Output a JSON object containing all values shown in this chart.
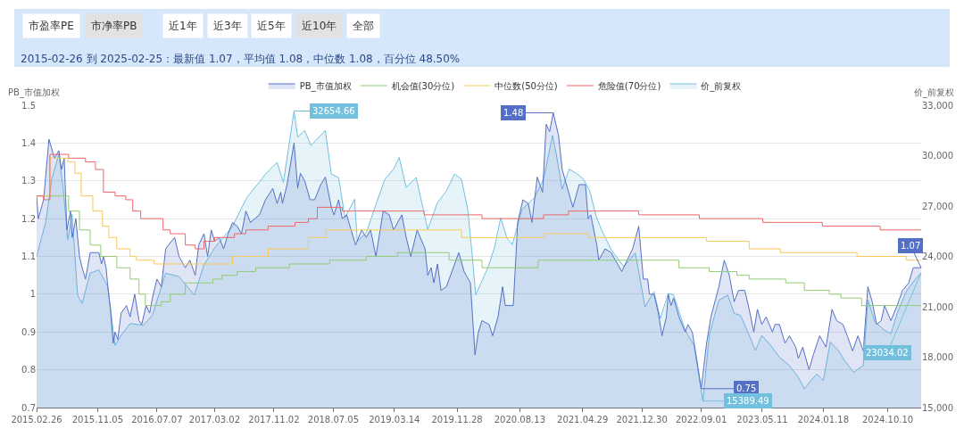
{
  "chart_data": {
    "type": "step",
    "subtitle": "2015-02-26 到 2025-02-25：最新值 1.07，平均值 1.08，中位数 1.08，百分位 48.50%",
    "annotations": [
      "市盈率PE",
      "市净率PB",
      "近1年",
      "近3年",
      "近5年",
      "近10年",
      "全部"
    ],
    "ylabel": "PB_市值加权",
    "y2label": "价_前复权",
    "xlim": [
      "2015-02-26",
      "2025-02-25"
    ],
    "xticks": [
      {
        "value": "2015-02-26",
        "label": "2015.02.26"
      },
      {
        "value": "2015-11-05",
        "label": "2015.11.05"
      },
      {
        "value": "2016-07-07",
        "label": "2016.07.07"
      },
      {
        "value": "2017-03-02",
        "label": "2017.03.02"
      },
      {
        "value": "2017-11-02",
        "label": "2017.11.02"
      },
      {
        "value": "2018-07-05",
        "label": "2018.07.05"
      },
      {
        "value": "2019-03-14",
        "label": "2019.03.14"
      },
      {
        "value": "2019-11-28",
        "label": "2019.11.28"
      },
      {
        "value": "2020-08-13",
        "label": "2020.08.13"
      },
      {
        "value": "2021-04-29",
        "label": "2021.04.29"
      },
      {
        "value": "2021-12-30",
        "label": "2021.12.30"
      },
      {
        "value": "2022-09-01",
        "label": "2022.09.01"
      },
      {
        "value": "2023-05-11",
        "label": "2023.05.11"
      },
      {
        "value": "2024-01-18",
        "label": "2024.01.18"
      },
      {
        "value": "2024-10-10",
        "label": "2024.10.10"
      }
    ],
    "ylim": [
      0.7,
      1.5
    ],
    "yticks": [
      0.7,
      0.8,
      0.9,
      1,
      1.1,
      1.2,
      1.3,
      1.4,
      1.5
    ],
    "y2lim": [
      15000,
      33000
    ],
    "y2ticks": [
      {
        "value": 15000,
        "label": "15,000"
      },
      {
        "value": 18000,
        "label": "18,000"
      },
      {
        "value": 21000,
        "label": "21,000"
      },
      {
        "value": 24000,
        "label": "24,000"
      },
      {
        "value": 27000,
        "label": "27,000"
      },
      {
        "value": 30000,
        "label": "30,000"
      },
      {
        "value": 33000,
        "label": "33,000"
      }
    ],
    "grid": "y",
    "legend": "top",
    "marker": "none",
    "series": [
      {
        "name": "PB_市值加权",
        "type": "area",
        "color": "#5470c6",
        "x": [
          "2015-02-26",
          "2015-03-05",
          "2015-03-27",
          "2015-04-18",
          "2015-05-11",
          "2015-05-29",
          "2015-06-09",
          "2015-06-20",
          "2015-07-01",
          "2015-07-16",
          "2015-07-23",
          "2015-08-07",
          "2015-08-22",
          "2015-09-02",
          "2015-09-16",
          "2015-10-05",
          "2015-11-10",
          "2015-11-21",
          "2015-11-29",
          "2015-12-10",
          "2015-12-17",
          "2015-12-28",
          "2016-01-08",
          "2016-01-16",
          "2016-01-27",
          "2016-02-10",
          "2016-03-03",
          "2016-03-18",
          "2016-04-06",
          "2016-04-24",
          "2016-05-05",
          "2016-05-23",
          "2016-06-07",
          "2016-06-18",
          "2016-07-07",
          "2016-07-25",
          "2016-08-12",
          "2016-08-23",
          "2016-09-18",
          "2016-10-06",
          "2016-11-01",
          "2016-11-20",
          "2016-12-12",
          "2016-12-26",
          "2017-01-17",
          "2017-02-01",
          "2017-02-16",
          "2017-03-02",
          "2017-03-21",
          "2017-04-08",
          "2017-04-27",
          "2017-05-15",
          "2017-06-03",
          "2017-06-21",
          "2017-07-09",
          "2017-07-28",
          "2017-08-15",
          "2017-09-03",
          "2017-09-28",
          "2017-10-28",
          "2017-11-15",
          "2017-11-30",
          "2017-12-07",
          "2017-12-26",
          "2018-01-24",
          "2018-02-08",
          "2018-02-19",
          "2018-03-09",
          "2018-03-31",
          "2018-04-19",
          "2018-05-14",
          "2018-06-02",
          "2018-06-27",
          "2018-07-08",
          "2018-07-27",
          "2018-08-11",
          "2018-08-29",
          "2018-10-05",
          "2018-10-30",
          "2018-11-18",
          "2018-12-06",
          "2018-12-28",
          "2019-01-27",
          "2019-02-21",
          "2019-03-11",
          "2019-04-14",
          "2019-05-02",
          "2019-05-21",
          "2019-06-16",
          "2019-07-19",
          "2019-07-30",
          "2019-08-13",
          "2019-08-24",
          "2019-09-08",
          "2019-09-23",
          "2019-10-15",
          "2019-12-05",
          "2019-12-27",
          "2020-01-22",
          "2020-02-10",
          "2020-02-24",
          "2020-03-10",
          "2020-04-08",
          "2020-04-23",
          "2020-05-15",
          "2020-06-03",
          "2020-06-14",
          "2020-07-17",
          "2020-07-28",
          "2020-08-04",
          "2020-08-26",
          "2020-09-17",
          "2020-10-02",
          "2020-10-24",
          "2020-11-15",
          "2020-11-30",
          "2020-12-14",
          "2020-12-29",
          "2021-01-20",
          "2021-02-04",
          "2021-03-20",
          "2021-04-15",
          "2021-05-11",
          "2021-05-22",
          "2021-06-02",
          "2021-06-27",
          "2021-07-05",
          "2021-07-31",
          "2021-08-25",
          "2021-10-08",
          "2021-11-22",
          "2021-12-17",
          "2022-01-05",
          "2022-01-23",
          "2022-01-30",
          "2022-02-18",
          "2022-03-08",
          "2022-03-23",
          "2022-04-10",
          "2022-04-18",
          "2022-04-29",
          "2022-05-10",
          "2022-06-01",
          "2022-06-27",
          "2022-07-08",
          "2022-07-26",
          "2022-08-13",
          "2022-09-01",
          "2022-09-23",
          "2022-10-11",
          "2022-11-13",
          "2022-12-05",
          "2022-12-26",
          "2023-01-15",
          "2023-02-02",
          "2023-02-28",
          "2023-03-18",
          "2023-04-06",
          "2023-04-21",
          "2023-05-09",
          "2023-05-27",
          "2023-06-22",
          "2023-07-03",
          "2023-07-21",
          "2023-08-13",
          "2023-08-31",
          "2023-09-26",
          "2023-10-07",
          "2023-10-25",
          "2023-11-20",
          "2023-12-08",
          "2024-01-03",
          "2024-01-29",
          "2024-02-23",
          "2024-03-13",
          "2024-04-08",
          "2024-04-26",
          "2024-05-18",
          "2024-06-09",
          "2024-07-01",
          "2024-07-20",
          "2024-08-07",
          "2024-08-25",
          "2024-09-13",
          "2024-09-27",
          "2024-10-23",
          "2024-11-18",
          "2024-12-10",
          "2025-01-05",
          "2025-01-23",
          "2025-02-25"
        ],
        "values": [
          1.26,
          1.2,
          1.25,
          1.41,
          1.36,
          1.38,
          1.33,
          1.36,
          1.17,
          1.22,
          1.15,
          1.2,
          1.1,
          1.07,
          1.04,
          1.11,
          1.11,
          1.08,
          1.1,
          1.07,
          1.02,
          0.96,
          0.87,
          0.9,
          0.88,
          0.95,
          0.97,
          0.94,
          1.0,
          0.93,
          0.92,
          0.97,
          0.95,
          0.99,
          1.04,
          1.02,
          1.12,
          1.13,
          1.15,
          1.1,
          1.07,
          1.09,
          1.05,
          1.13,
          1.16,
          1.1,
          1.17,
          1.14,
          1.15,
          1.12,
          1.16,
          1.19,
          1.18,
          1.16,
          1.22,
          1.19,
          1.2,
          1.21,
          1.25,
          1.28,
          1.24,
          1.27,
          1.24,
          1.29,
          1.4,
          1.28,
          1.32,
          1.3,
          1.25,
          1.25,
          1.29,
          1.31,
          1.23,
          1.21,
          1.25,
          1.2,
          1.21,
          1.13,
          1.17,
          1.15,
          1.17,
          1.1,
          1.22,
          1.21,
          1.17,
          1.21,
          1.15,
          1.1,
          1.17,
          1.12,
          1.05,
          1.07,
          1.03,
          1.08,
          1.01,
          1.02,
          1.11,
          1.06,
          1.03,
          0.84,
          0.9,
          0.93,
          0.92,
          0.89,
          0.94,
          1.02,
          0.97,
          0.97,
          1.1,
          1.19,
          1.25,
          1.24,
          1.19,
          1.31,
          1.27,
          1.45,
          1.43,
          1.48,
          1.42,
          1.33,
          1.23,
          1.29,
          1.29,
          1.2,
          1.21,
          1.13,
          1.09,
          1.12,
          1.11,
          1.06,
          1.12,
          1.18,
          1.04,
          1.04,
          1.0,
          1.0,
          0.95,
          0.89,
          0.94,
          1.0,
          0.97,
          0.99,
          0.94,
          0.9,
          0.92,
          0.9,
          0.83,
          0.75,
          0.87,
          0.94,
          1.02,
          1.09,
          1.05,
          0.98,
          1.01,
          1.01,
          0.96,
          0.9,
          0.96,
          0.92,
          0.94,
          0.9,
          0.92,
          0.92,
          0.87,
          0.89,
          0.86,
          0.83,
          0.86,
          0.8,
          0.84,
          0.89,
          0.86,
          0.96,
          0.93,
          0.92,
          0.89,
          0.85,
          0.89,
          0.85,
          1.02,
          0.98,
          0.92,
          0.93,
          0.97,
          0.93,
          0.97,
          1.01,
          1.03,
          1.07,
          1.07
        ],
        "value_labels": [
          null,
          null,
          null,
          null,
          null,
          null,
          null,
          null,
          null,
          null,
          null,
          null,
          null,
          null,
          null,
          null,
          null,
          null,
          null,
          null,
          null,
          null,
          null,
          null,
          null,
          null,
          null,
          null,
          null,
          null,
          null,
          null,
          null,
          null,
          null,
          null,
          null,
          null,
          null,
          null,
          null,
          null,
          null,
          null,
          null,
          null,
          null,
          null,
          null,
          null,
          null,
          null,
          null,
          null,
          null,
          null,
          null,
          null,
          null,
          null,
          null,
          null,
          null,
          null,
          null,
          null,
          null,
          null,
          null,
          null,
          null,
          null,
          null,
          null,
          null,
          null,
          null,
          null,
          null,
          null,
          null,
          null,
          null,
          null,
          null,
          null,
          null,
          null,
          null,
          null,
          null,
          null,
          null,
          null,
          null,
          null,
          null,
          null,
          null,
          null,
          null,
          null,
          null,
          null,
          null,
          null,
          null,
          null,
          null,
          null,
          null,
          null,
          null,
          null,
          null,
          null,
          null,
          "1.48",
          null,
          null,
          null,
          null,
          null,
          null,
          null,
          null,
          null,
          null,
          null,
          null,
          null,
          null,
          null,
          null,
          null,
          null,
          null,
          null,
          null,
          null,
          null,
          null,
          null,
          null,
          null,
          null,
          null,
          "0.75",
          null,
          null,
          null,
          null,
          null,
          null,
          null,
          null,
          null,
          null,
          null,
          null,
          null,
          null,
          null,
          null,
          null,
          null,
          null,
          null,
          null,
          null,
          null,
          null,
          null,
          null,
          null,
          null,
          null,
          null,
          null,
          null,
          null,
          null,
          null,
          null,
          null,
          null,
          null,
          null,
          null,
          null,
          "1.07"
        ]
      },
      {
        "name": "机会值(30分位)",
        "color": "#91cc75",
        "x": [
          "2015-02-26",
          "2015-07-08",
          "2015-08-22",
          "2015-10-05",
          "2015-11-18",
          "2016-01-23",
          "2016-03-18",
          "2016-04-24",
          "2016-05-20",
          "2016-07-25",
          "2016-08-31",
          "2016-11-01",
          "2017-02-23",
          "2017-04-01",
          "2017-06-03",
          "2017-08-19",
          "2018-01-05",
          "2018-06-20",
          "2018-11-18",
          "2019-03-27",
          "2019-10-26",
          "2020-03-10",
          "2020-10-28",
          "2022-06-01",
          "2022-10-04",
          "2023-01-26",
          "2023-03-18",
          "2023-08-16",
          "2023-11-01",
          "2024-02-12",
          "2024-03-31",
          "2024-06-24",
          "2025-02-25"
        ],
        "values": [
          1.26,
          1.22,
          1.17,
          1.13,
          1.1,
          1.07,
          1.04,
          1.0,
          0.97,
          0.98,
          1.0,
          1.03,
          1.04,
          1.05,
          1.06,
          1.07,
          1.08,
          1.09,
          1.1,
          1.11,
          1.09,
          1.07,
          1.09,
          1.07,
          1.06,
          1.05,
          1.04,
          1.03,
          1.01,
          1.0,
          0.99,
          0.97,
          0.97
        ]
      },
      {
        "name": "中位数(50分位)",
        "color": "#fac858",
        "x": [
          "2015-02-26",
          "2015-04-22",
          "2015-07-05",
          "2015-08-03",
          "2015-08-29",
          "2015-10-16",
          "2015-11-25",
          "2015-12-21",
          "2016-01-23",
          "2016-03-18",
          "2016-04-13",
          "2016-06-25",
          "2017-05-15",
          "2017-10-09",
          "2018-03-24",
          "2018-06-05",
          "2019-12-16",
          "2020-11-22",
          "2021-05-25",
          "2022-09-23",
          "2023-03-18",
          "2023-07-25",
          "2024-06-05",
          "2024-12-25",
          "2025-02-25"
        ],
        "values": [
          1.26,
          1.36,
          1.35,
          1.32,
          1.26,
          1.22,
          1.18,
          1.15,
          1.12,
          1.1,
          1.09,
          1.08,
          1.1,
          1.12,
          1.15,
          1.17,
          1.15,
          1.16,
          1.15,
          1.14,
          1.12,
          1.11,
          1.1,
          1.09,
          1.09
        ]
      },
      {
        "name": "危险值(70分位)",
        "color": "#ee6666",
        "x": [
          "2015-02-26",
          "2015-03-27",
          "2015-04-22",
          "2015-07-08",
          "2015-09-16",
          "2015-10-27",
          "2015-11-29",
          "2016-01-16",
          "2016-02-29",
          "2016-03-29",
          "2016-05-01",
          "2016-08-01",
          "2016-08-31",
          "2016-11-01",
          "2016-12-12",
          "2017-01-17",
          "2017-03-02",
          "2017-05-23",
          "2017-07-09",
          "2017-10-09",
          "2018-01-28",
          "2018-03-24",
          "2018-04-30",
          "2018-08-11",
          "2019-07-15",
          "2020-03-10",
          "2020-11-19",
          "2021-03-02",
          "2021-12-17",
          "2022-08-24",
          "2023-05-13",
          "2024-01-14",
          "2024-09-09",
          "2025-02-25"
        ],
        "values": [
          1.26,
          1.25,
          1.37,
          1.36,
          1.35,
          1.33,
          1.27,
          1.26,
          1.25,
          1.22,
          1.2,
          1.17,
          1.16,
          1.13,
          1.12,
          1.14,
          1.15,
          1.16,
          1.17,
          1.18,
          1.19,
          1.2,
          1.23,
          1.22,
          1.21,
          1.2,
          1.21,
          1.22,
          1.21,
          1.2,
          1.19,
          1.18,
          1.17,
          1.17
        ]
      },
      {
        "name": "价_前复权",
        "type": "area",
        "axis": "y2",
        "color": "#73c0de",
        "x": [
          "2015-02-26",
          "2015-04-04",
          "2015-04-30",
          "2015-05-29",
          "2015-06-16",
          "2015-07-05",
          "2015-07-23",
          "2015-08-14",
          "2015-09-02",
          "2015-10-05",
          "2015-11-10",
          "2015-12-17",
          "2016-01-16",
          "2016-02-10",
          "2016-03-18",
          "2016-05-12",
          "2016-06-18",
          "2016-08-12",
          "2016-10-06",
          "2016-12-08",
          "2017-01-17",
          "2017-03-02",
          "2017-05-15",
          "2017-07-13",
          "2017-09-28",
          "2017-11-15",
          "2017-12-11",
          "2018-01-24",
          "2018-02-08",
          "2018-03-09",
          "2018-04-04",
          "2018-06-02",
          "2018-06-27",
          "2018-07-27",
          "2018-08-22",
          "2018-10-01",
          "2018-10-12",
          "2018-11-18",
          "2018-12-21",
          "2019-02-03",
          "2019-03-11",
          "2019-04-03",
          "2019-05-02",
          "2019-06-12",
          "2019-07-30",
          "2019-09-08",
          "2019-10-15",
          "2019-11-17",
          "2019-12-16",
          "2020-01-11",
          "2020-01-30",
          "2020-02-13",
          "2020-04-05",
          "2020-04-30",
          "2020-05-26",
          "2020-06-21",
          "2020-07-13",
          "2020-08-22",
          "2020-10-13",
          "2020-11-19",
          "2020-12-26",
          "2021-01-09",
          "2021-02-04",
          "2021-03-05",
          "2021-04-08",
          "2021-05-03",
          "2021-05-29",
          "2021-06-24",
          "2021-07-16",
          "2021-08-25",
          "2021-10-16",
          "2021-12-03",
          "2022-01-12",
          "2022-02-18",
          "2022-03-16",
          "2022-04-18",
          "2022-05-10",
          "2022-06-27",
          "2022-08-02",
          "2022-09-08",
          "2022-10-04",
          "2022-11-13",
          "2022-12-20",
          "2023-01-15",
          "2023-02-10",
          "2023-03-18",
          "2023-04-13",
          "2023-05-09",
          "2023-06-15",
          "2023-07-21",
          "2023-08-31",
          "2023-10-07",
          "2023-11-01",
          "2023-11-27",
          "2023-12-23",
          "2024-01-18",
          "2024-02-16",
          "2024-03-20",
          "2024-04-15",
          "2024-05-22",
          "2024-07-01",
          "2024-07-20",
          "2024-08-18",
          "2024-09-27",
          "2024-10-23",
          "2024-11-18",
          "2024-12-25",
          "2025-01-30",
          "2025-02-25"
        ],
        "values": [
          24000,
          26000,
          28600,
          30100,
          28000,
          25000,
          26500,
          21700,
          21200,
          23000,
          23200,
          22200,
          18700,
          19300,
          20000,
          19900,
          20500,
          23000,
          22800,
          21700,
          23500,
          24500,
          25800,
          27500,
          28900,
          29600,
          28400,
          32654.66,
          31100,
          31500,
          30600,
          31500,
          28900,
          28700,
          26300,
          27400,
          24900,
          25400,
          26800,
          28600,
          29200,
          29900,
          28100,
          28700,
          25600,
          27200,
          27900,
          28900,
          28600,
          26800,
          24000,
          21700,
          23400,
          24500,
          26300,
          25100,
          24700,
          26800,
          27500,
          28600,
          31200,
          30200,
          28000,
          29200,
          28900,
          28600,
          27900,
          26400,
          25600,
          24400,
          23400,
          24200,
          21000,
          21900,
          20300,
          21800,
          21700,
          19600,
          18700,
          15389.49,
          19300,
          21400,
          21700,
          20600,
          20500,
          19300,
          18400,
          19300,
          18700,
          18000,
          17500,
          16800,
          16100,
          16600,
          17000,
          16600,
          18900,
          18400,
          17800,
          17100,
          17500,
          21400,
          20100,
          19600,
          19400,
          20600,
          21900,
          22600,
          23034.02
        ],
        "value_labels": [
          null,
          null,
          null,
          null,
          null,
          null,
          null,
          null,
          null,
          null,
          null,
          null,
          null,
          null,
          null,
          null,
          null,
          null,
          null,
          null,
          null,
          null,
          null,
          null,
          null,
          null,
          null,
          "32654.66",
          null,
          null,
          null,
          null,
          null,
          null,
          null,
          null,
          null,
          null,
          null,
          null,
          null,
          null,
          null,
          null,
          null,
          null,
          null,
          null,
          null,
          null,
          null,
          null,
          null,
          null,
          null,
          null,
          null,
          null,
          null,
          null,
          null,
          null,
          null,
          null,
          null,
          null,
          null,
          null,
          null,
          null,
          null,
          null,
          null,
          null,
          null,
          null,
          null,
          null,
          null,
          "15389.49",
          null,
          null,
          null,
          null,
          null,
          null,
          null,
          null,
          null,
          null,
          null,
          null,
          null,
          null,
          null,
          null,
          null,
          null,
          null,
          null,
          null,
          null,
          null,
          null,
          null,
          null,
          null,
          null,
          "23034.02"
        ]
      }
    ]
  }
}
